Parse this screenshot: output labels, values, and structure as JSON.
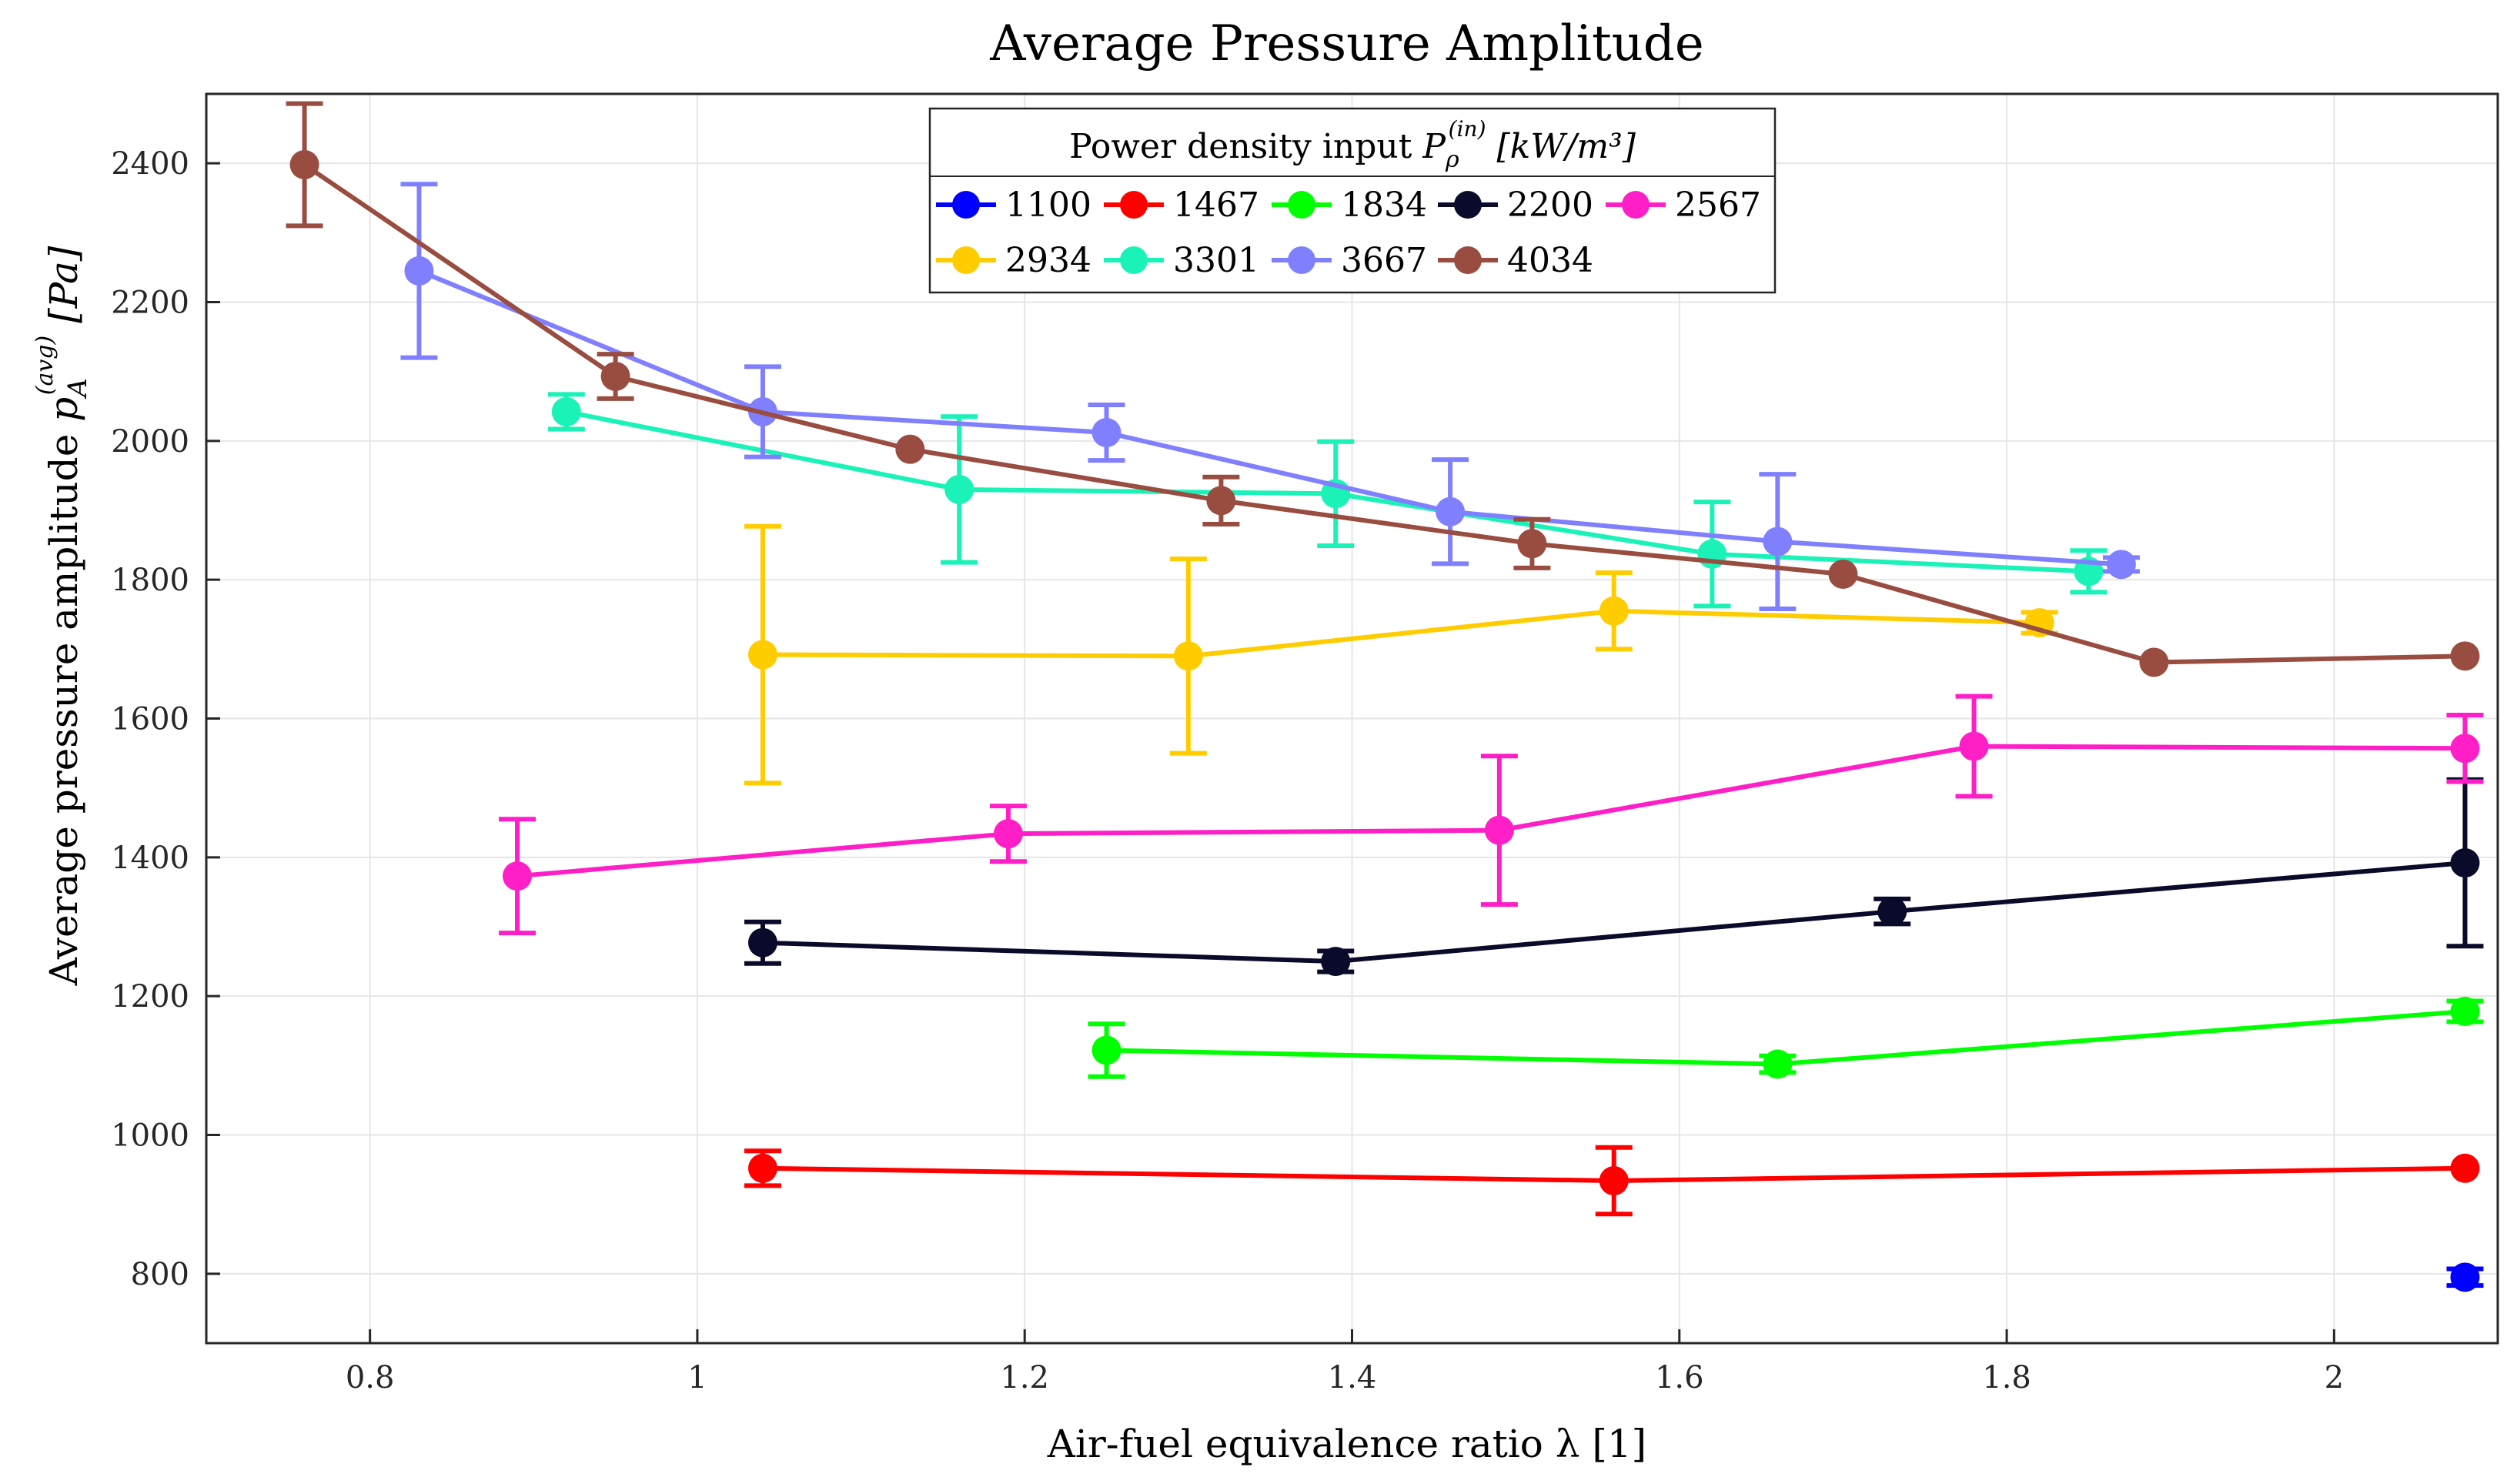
{
  "chart_data": {
    "type": "line",
    "title": "Average Pressure Amplitude",
    "xlabel": "Air-fuel equivalence ratio λ [1]",
    "ylabel": "Average pressure amplitude p_A^(avg) [Pa]",
    "ylabel_parts": {
      "prefix": "Average pressure amplitude ",
      "symbol": "p",
      "sub": "A",
      "sup": "(avg)",
      "unit": "[Pa]"
    },
    "xlim": [
      0.7,
      2.1
    ],
    "ylim": [
      700,
      2500
    ],
    "xticks": [
      0.8,
      1,
      1.2,
      1.4,
      1.6,
      1.8,
      2
    ],
    "xtick_labels": [
      "0.8",
      "1",
      "1.2",
      "1.4",
      "1.6",
      "1.8",
      "2"
    ],
    "yticks": [
      800,
      1000,
      1200,
      1400,
      1600,
      1800,
      2000,
      2200,
      2400
    ],
    "ytick_labels": [
      "800",
      "1000",
      "1200",
      "1400",
      "1600",
      "1800",
      "2000",
      "2200",
      "2400"
    ],
    "grid": true,
    "legend": {
      "title": "Power density input P_ρ^(in) [kW/m³]",
      "title_parts": {
        "prefix": "Power density input ",
        "symbol": "P",
        "sub": "ρ",
        "sup": "(in)",
        "unit": "[kW/m³]"
      },
      "placement": "top-center"
    },
    "series": [
      {
        "name": "1100",
        "color": "#0000ff",
        "points": [
          {
            "x": 2.08,
            "y": 795,
            "err": 12
          }
        ]
      },
      {
        "name": "1467",
        "color": "#ff0000",
        "points": [
          {
            "x": 1.04,
            "y": 952,
            "err": 25
          },
          {
            "x": 1.56,
            "y": 934,
            "err": 48
          },
          {
            "x": 2.08,
            "y": 952,
            "err": 0
          }
        ]
      },
      {
        "name": "1834",
        "color": "#00ff00",
        "points": [
          {
            "x": 1.25,
            "y": 1122,
            "err": 38
          },
          {
            "x": 1.66,
            "y": 1102,
            "err": 12
          },
          {
            "x": 2.08,
            "y": 1178,
            "err": 15
          }
        ]
      },
      {
        "name": "2200",
        "color": "#0a0a2a",
        "points": [
          {
            "x": 1.04,
            "y": 1277,
            "err": 30
          },
          {
            "x": 1.39,
            "y": 1250,
            "err": 15
          },
          {
            "x": 1.73,
            "y": 1322,
            "err": 18
          },
          {
            "x": 2.08,
            "y": 1392,
            "err": 120
          }
        ]
      },
      {
        "name": "2567",
        "color": "#ff1fc6",
        "points": [
          {
            "x": 0.89,
            "y": 1373,
            "err": 82
          },
          {
            "x": 1.19,
            "y": 1434,
            "err": 40
          },
          {
            "x": 1.49,
            "y": 1439,
            "err": 107
          },
          {
            "x": 1.78,
            "y": 1560,
            "err": 72
          },
          {
            "x": 2.08,
            "y": 1557,
            "err": 48
          }
        ]
      },
      {
        "name": "2934",
        "color": "#ffcc00",
        "points": [
          {
            "x": 1.04,
            "y": 1692,
            "err": 185
          },
          {
            "x": 1.3,
            "y": 1690,
            "err": 140
          },
          {
            "x": 1.56,
            "y": 1755,
            "err": 55
          },
          {
            "x": 1.82,
            "y": 1738,
            "err": 15
          }
        ]
      },
      {
        "name": "3301",
        "color": "#1af2b8",
        "points": [
          {
            "x": 0.92,
            "y": 2042,
            "err": 25
          },
          {
            "x": 1.16,
            "y": 1930,
            "err": 105
          },
          {
            "x": 1.39,
            "y": 1924,
            "err": 75
          },
          {
            "x": 1.62,
            "y": 1837,
            "err": 75
          },
          {
            "x": 1.85,
            "y": 1812,
            "err": 30
          }
        ]
      },
      {
        "name": "3667",
        "color": "#8080ff",
        "points": [
          {
            "x": 0.83,
            "y": 2245,
            "err": 125
          },
          {
            "x": 1.04,
            "y": 2042,
            "err": 65
          },
          {
            "x": 1.25,
            "y": 2012,
            "err": 40
          },
          {
            "x": 1.46,
            "y": 1898,
            "err": 75
          },
          {
            "x": 1.66,
            "y": 1855,
            "err": 97
          },
          {
            "x": 1.87,
            "y": 1822,
            "err": 10
          }
        ]
      },
      {
        "name": "4034",
        "color": "#994d40",
        "points": [
          {
            "x": 0.76,
            "y": 2398,
            "err": 88
          },
          {
            "x": 0.95,
            "y": 2093,
            "err": 32
          },
          {
            "x": 1.13,
            "y": 1988,
            "err": 0
          },
          {
            "x": 1.32,
            "y": 1914,
            "err": 34
          },
          {
            "x": 1.51,
            "y": 1852,
            "err": 35
          },
          {
            "x": 1.7,
            "y": 1808,
            "err": 0
          },
          {
            "x": 1.89,
            "y": 1681,
            "err": 0
          },
          {
            "x": 2.08,
            "y": 1690,
            "err": 0
          }
        ]
      }
    ]
  }
}
